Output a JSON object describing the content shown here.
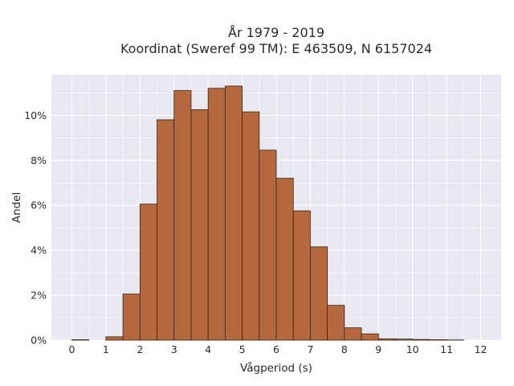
{
  "chart_data": {
    "type": "bar",
    "title_line1": "År 1979 - 2019",
    "title_line2": "Koordinat (Sweref 99 TM): E 463509, N 6157024",
    "xlabel": "Vågperiod (s)",
    "ylabel": "Andel",
    "bin_width": 0.5,
    "bins": [
      {
        "x0": 0.0,
        "value": 0.02
      },
      {
        "x0": 0.5,
        "value": 0.0
      },
      {
        "x0": 1.0,
        "value": 0.15
      },
      {
        "x0": 1.5,
        "value": 2.05
      },
      {
        "x0": 2.0,
        "value": 6.05
      },
      {
        "x0": 2.5,
        "value": 9.8
      },
      {
        "x0": 3.0,
        "value": 11.1
      },
      {
        "x0": 3.5,
        "value": 10.25
      },
      {
        "x0": 4.0,
        "value": 11.2
      },
      {
        "x0": 4.5,
        "value": 11.3
      },
      {
        "x0": 5.0,
        "value": 10.15
      },
      {
        "x0": 5.5,
        "value": 8.45
      },
      {
        "x0": 6.0,
        "value": 7.2
      },
      {
        "x0": 6.5,
        "value": 5.75
      },
      {
        "x0": 7.0,
        "value": 4.15
      },
      {
        "x0": 7.5,
        "value": 1.55
      },
      {
        "x0": 8.0,
        "value": 0.55
      },
      {
        "x0": 8.5,
        "value": 0.28
      },
      {
        "x0": 9.0,
        "value": 0.06
      },
      {
        "x0": 9.5,
        "value": 0.05
      },
      {
        "x0": 10.0,
        "value": 0.03
      },
      {
        "x0": 10.5,
        "value": 0.02
      },
      {
        "x0": 11.0,
        "value": 0.01
      }
    ],
    "x_ticks": [
      0,
      1,
      2,
      3,
      4,
      5,
      6,
      7,
      8,
      9,
      10,
      11,
      12
    ],
    "y_ticks": [
      {
        "value": 0,
        "label": "0%"
      },
      {
        "value": 2,
        "label": "2%"
      },
      {
        "value": 4,
        "label": "4%"
      },
      {
        "value": 6,
        "label": "6%"
      },
      {
        "value": 8,
        "label": "8%"
      },
      {
        "value": 10,
        "label": "10%"
      }
    ],
    "xlim": [
      -0.6,
      12.6
    ],
    "ylim": [
      0,
      11.8
    ],
    "grid": true,
    "colors": {
      "bar_fill": "#b5683e",
      "bar_stroke": "#3a2414",
      "plot_bg": "#e8e8f0",
      "grid": "#ffffff"
    }
  }
}
